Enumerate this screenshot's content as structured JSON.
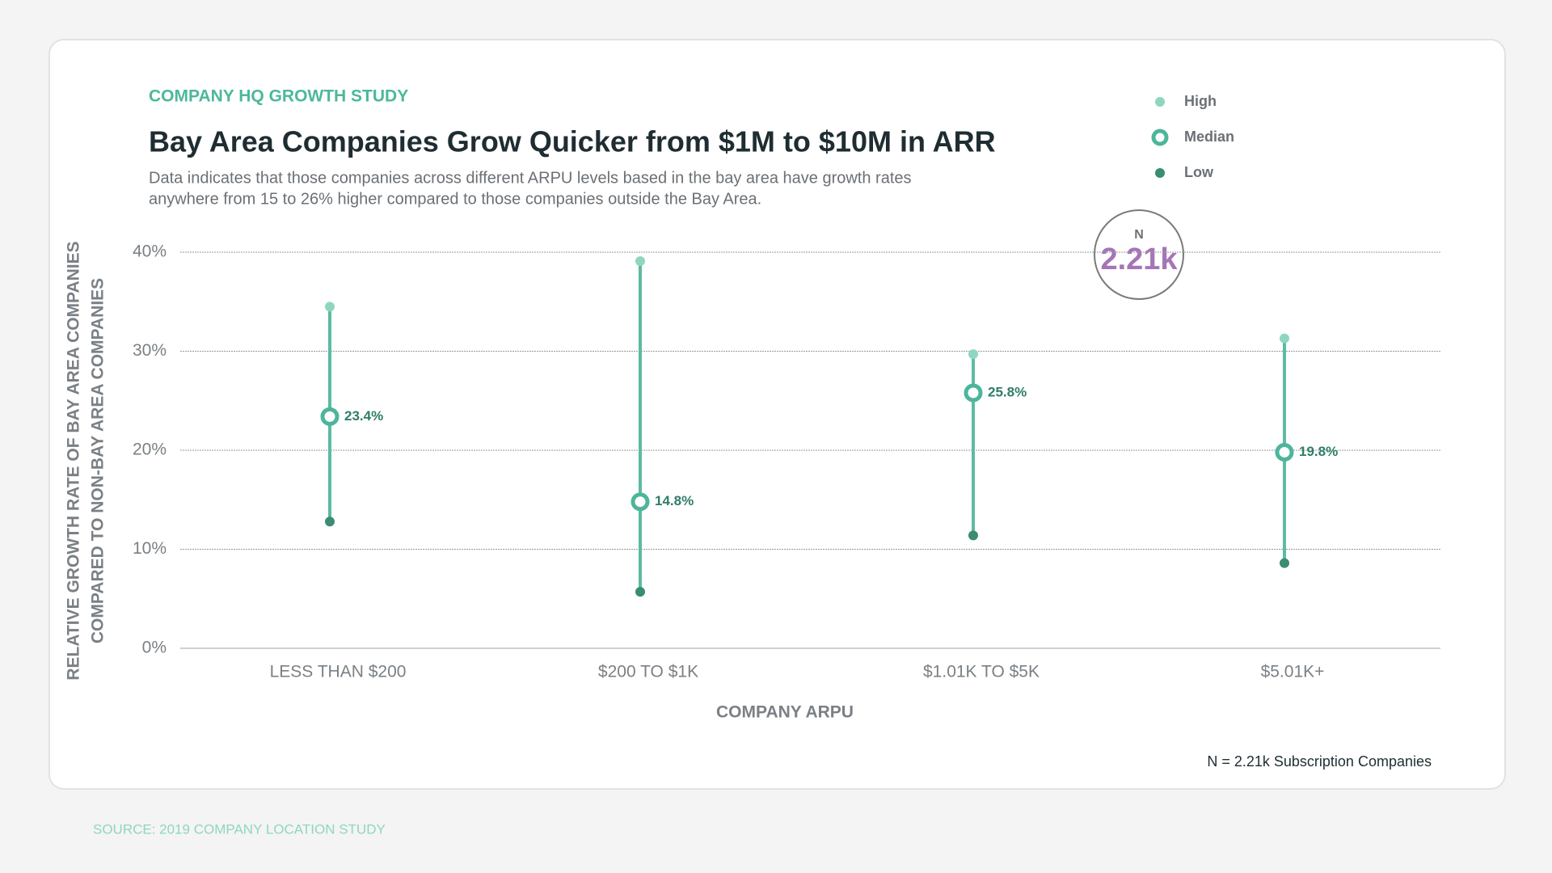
{
  "chart_data": {
    "type": "range",
    "kicker": "COMPANY HQ GROWTH STUDY",
    "title": "Bay Area Companies Grow Quicker from $1M to $10M in ARR",
    "subtitle": [
      "Data indicates that those companies across different ARPU levels based in the bay area have growth rates",
      "anywhere from 15 to 26% higher compared to those companies outside the Bay Area."
    ],
    "y_label": [
      "RELATIVE GROWTH RATE OF BAY AREA COMPANIES",
      "COMPARED TO NON-BAY AREA COMPANIES"
    ],
    "x_label": "COMPANY ARPU",
    "categories": [
      "LESS THAN $200",
      "$200 TO $1K",
      "$1.01K TO $5K",
      "$5.01K+"
    ],
    "series": [
      {
        "name": "High",
        "color": "#8fd6bf",
        "values": [
          34.5,
          39.1,
          29.7,
          31.3
        ]
      },
      {
        "name": "Median",
        "color": "#4db59c",
        "values": [
          23.4,
          14.8,
          25.8,
          19.8
        ],
        "value_labels": [
          "23.4%",
          "14.8%",
          "25.8%",
          "19.8%"
        ]
      },
      {
        "name": "Low",
        "color": "#3a8c73",
        "values": [
          12.8,
          5.7,
          11.4,
          8.6
        ]
      }
    ],
    "range_color": "#5dbba3",
    "ylim": [
      0,
      40
    ],
    "yticks": [
      {
        "value": 0,
        "label": "0%"
      },
      {
        "value": 10,
        "label": "10%"
      },
      {
        "value": 20,
        "label": "20%"
      },
      {
        "value": 30,
        "label": "30%"
      },
      {
        "value": 40,
        "label": "40%"
      }
    ],
    "grid": true,
    "badge": {
      "label": "N",
      "value": "2.21k"
    },
    "footnote": "N = 2.21k Subscription Companies",
    "source": "SOURCE: 2019 COMPANY LOCATION STUDY"
  }
}
